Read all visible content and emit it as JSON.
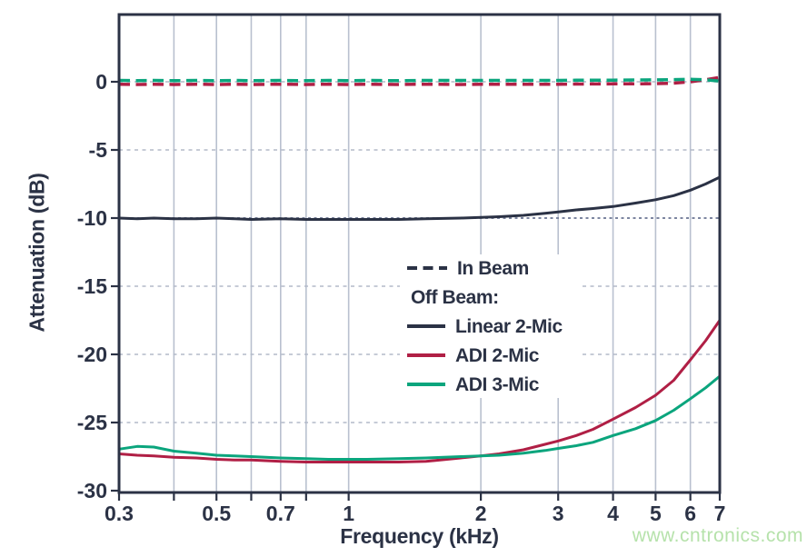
{
  "colors": {
    "navy": "#2b3245",
    "red": "#b01f45",
    "green": "#0ba57d",
    "grid_vertical": "#b9c0cf",
    "grid_horizontal": "#b3bac9",
    "ref_dotted": "#7d86a0",
    "background": "#ffffff",
    "watermark_green": "#b6e2ab"
  },
  "legend": {
    "in_beam_label": "In Beam",
    "off_beam_label": "Off Beam:",
    "items": [
      {
        "label": "Linear 2-Mic",
        "color": "#2b3245"
      },
      {
        "label": "ADI 2-Mic",
        "color": "#b01f45"
      },
      {
        "label": "ADI 3-Mic",
        "color": "#0ba57d"
      }
    ]
  },
  "watermark": {
    "text": "www.cntronics.com",
    "color": "#b6e2ab"
  },
  "chart_data": {
    "type": "line",
    "title": "",
    "xlabel": "Frequency (kHz)",
    "ylabel": "Attenuation (dB)",
    "x_scale": "log",
    "xlim": [
      0.3,
      7
    ],
    "ylim": [
      -30,
      5
    ],
    "grid": true,
    "legend_position": "center-right-inside",
    "x_ticks": {
      "labels": [
        "0.3",
        "0.5",
        "0.7",
        "1",
        "2",
        "3",
        "4",
        "5",
        "6",
        "7"
      ],
      "values": [
        0.3,
        0.5,
        0.7,
        1,
        2,
        3,
        4,
        5,
        6,
        7
      ]
    },
    "y_ticks": {
      "labels": [
        "0",
        "-5",
        "-10",
        "-15",
        "-20",
        "-25",
        "-30"
      ],
      "values": [
        0,
        -5,
        -10,
        -15,
        -20,
        -25,
        -30
      ]
    },
    "x_gridlines": [
      0.4,
      0.5,
      0.6,
      0.7,
      0.8,
      1,
      2,
      3,
      4,
      5,
      6
    ],
    "y_gridlines": [
      0,
      -5,
      -15,
      -20,
      -25
    ],
    "reference_line": {
      "value": -10,
      "style": "dotted"
    },
    "x_minor_ticks": [
      0.3,
      0.4,
      0.5,
      0.6,
      0.7,
      0.8,
      1,
      2,
      3,
      4,
      5,
      6,
      7
    ],
    "x": [
      0.3,
      0.33,
      0.36,
      0.4,
      0.45,
      0.5,
      0.55,
      0.6,
      0.7,
      0.8,
      0.9,
      1,
      1.1,
      1.3,
      1.5,
      1.8,
      2,
      2.2,
      2.5,
      2.8,
      3,
      3.3,
      3.6,
      4,
      4.5,
      5,
      5.5,
      6,
      6.5,
      7
    ],
    "series": [
      {
        "name": "In Beam (ADI 2-Mic)",
        "legend_group": "In Beam",
        "style": "dashed",
        "color": "#b01f45",
        "values": [
          -0.18,
          -0.2,
          -0.18,
          -0.2,
          -0.18,
          -0.2,
          -0.18,
          -0.2,
          -0.18,
          -0.2,
          -0.18,
          -0.2,
          -0.18,
          -0.2,
          -0.18,
          -0.2,
          -0.18,
          -0.18,
          -0.18,
          -0.18,
          -0.18,
          -0.17,
          -0.16,
          -0.15,
          -0.15,
          -0.14,
          -0.1,
          0.0,
          0.15,
          0.32
        ]
      },
      {
        "name": "In Beam (ADI 3-Mic)",
        "legend_group": "In Beam",
        "style": "dashed",
        "color": "#0ba57d",
        "values": [
          0.1,
          0.08,
          0.1,
          0.08,
          0.1,
          0.08,
          0.1,
          0.08,
          0.1,
          0.08,
          0.1,
          0.08,
          0.1,
          0.08,
          0.1,
          0.1,
          0.1,
          0.1,
          0.1,
          0.1,
          0.1,
          0.11,
          0.12,
          0.12,
          0.13,
          0.14,
          0.16,
          0.18,
          0.15,
          0.05
        ]
      },
      {
        "name": "Linear 2-Mic",
        "legend_group": "Off Beam",
        "style": "solid",
        "color": "#2b3245",
        "values": [
          -10.0,
          -10.05,
          -10.0,
          -10.05,
          -10.05,
          -10.0,
          -10.05,
          -10.1,
          -10.05,
          -10.1,
          -10.1,
          -10.1,
          -10.1,
          -10.1,
          -10.05,
          -10.0,
          -9.95,
          -9.9,
          -9.8,
          -9.65,
          -9.55,
          -9.4,
          -9.3,
          -9.15,
          -8.9,
          -8.65,
          -8.35,
          -7.95,
          -7.5,
          -7.0
        ]
      },
      {
        "name": "ADI 2-Mic",
        "legend_group": "Off Beam",
        "style": "solid",
        "color": "#b01f45",
        "values": [
          -27.3,
          -27.4,
          -27.45,
          -27.55,
          -27.6,
          -27.7,
          -27.75,
          -27.75,
          -27.85,
          -27.9,
          -27.9,
          -27.9,
          -27.9,
          -27.9,
          -27.85,
          -27.6,
          -27.45,
          -27.3,
          -27.0,
          -26.6,
          -26.35,
          -25.95,
          -25.5,
          -24.75,
          -23.9,
          -23.0,
          -21.9,
          -20.4,
          -19.0,
          -17.5
        ]
      },
      {
        "name": "ADI 3-Mic",
        "legend_group": "Off Beam",
        "style": "solid",
        "color": "#0ba57d",
        "values": [
          -26.95,
          -26.75,
          -26.8,
          -27.1,
          -27.25,
          -27.4,
          -27.45,
          -27.5,
          -27.6,
          -27.65,
          -27.7,
          -27.7,
          -27.7,
          -27.65,
          -27.6,
          -27.5,
          -27.45,
          -27.4,
          -27.25,
          -27.05,
          -26.9,
          -26.7,
          -26.45,
          -25.95,
          -25.45,
          -24.85,
          -24.1,
          -23.25,
          -22.45,
          -21.6
        ]
      }
    ]
  }
}
